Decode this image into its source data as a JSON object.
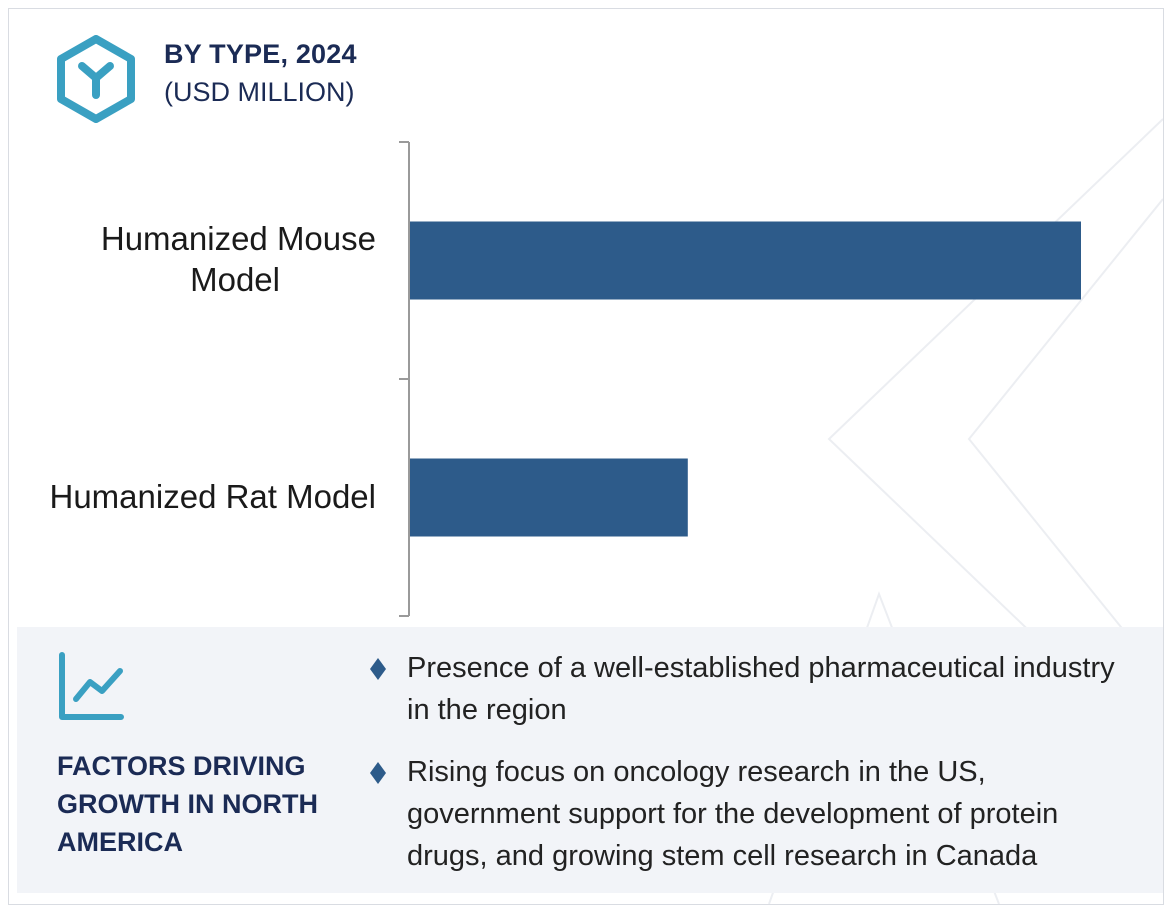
{
  "header": {
    "title": "BY TYPE, 2024",
    "subtitle": "(USD MILLION)",
    "logo_icon": "cube-y-icon"
  },
  "chart_data": {
    "type": "bar",
    "orientation": "horizontal",
    "title": "BY TYPE, 2024",
    "subtitle": "(USD MILLION)",
    "categories": [
      "Humanized Mouse Model",
      "Humanized Rat Model"
    ],
    "values": [
      100,
      41.4
    ],
    "value_scale": "relative (no axis values printed)",
    "xlim": [
      0,
      100
    ],
    "grid": false,
    "legend": "none",
    "bar_color": "#2d5b8a",
    "xlabel": "",
    "ylabel": ""
  },
  "labels": {
    "mouse_line1": "Humanized Mouse",
    "mouse_line2": "Model",
    "rat": "Humanized Rat Model"
  },
  "panel": {
    "heading": "FACTORS DRIVING GROWTH IN NORTH AMERICA",
    "icon": "trend-chart-icon",
    "bullets": [
      "Presence of a well-established pharmaceutical industry in the region",
      "Rising focus on oncology research in the US, government support for the development of protein drugs, and growing stem cell research in Canada"
    ]
  },
  "colors": {
    "heading": "#1b2b55",
    "accent_teal": "#3aa0c2",
    "bar": "#2d5b8a",
    "panel_bg": "#f2f4f8",
    "bullet_diamond": "#2d5b8a"
  }
}
